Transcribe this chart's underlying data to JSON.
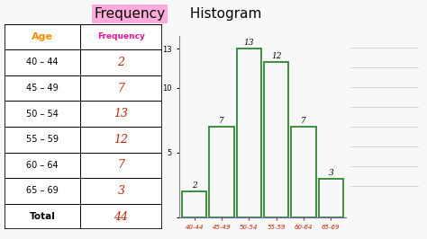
{
  "title_part1": "Frequency",
  "title_part2": " Histogram",
  "categories": [
    "40-44",
    "45-49",
    "50-54",
    "55-59",
    "60-64",
    "65-69"
  ],
  "frequencies": [
    2,
    7,
    13,
    12,
    7,
    3
  ],
  "total": 44,
  "table_ages": [
    "40 – 44",
    "45 – 49",
    "50 – 54",
    "55 – 59",
    "60 – 64",
    "65 – 69"
  ],
  "bar_color": "#2a8a2a",
  "highlight_pink": "#ff85c2",
  "table_age_header_color": "#ff8c00",
  "table_freq_header_color": "#ee1199",
  "table_freq_color": "#cc2200",
  "total_color": "#cc2200",
  "whiteboard_color": "#f8f8f8",
  "toolbar_color": "#a8bcd4",
  "ylim": [
    0,
    14
  ],
  "ytick_labels": [
    "",
    "5",
    "10",
    "13"
  ],
  "ytick_values": [
    0,
    5,
    10,
    13
  ],
  "xlabel_color": "#cc2200"
}
